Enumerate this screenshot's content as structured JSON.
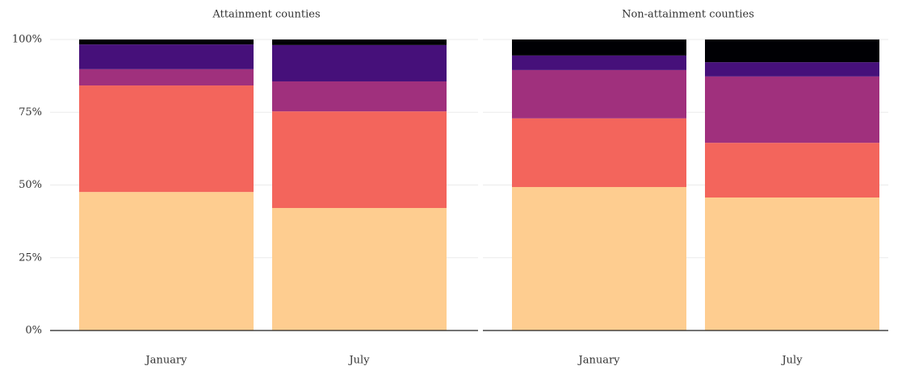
{
  "chart_data": [
    {
      "type": "bar",
      "stacked": true,
      "title": "Attainment counties",
      "categories": [
        "January",
        "July"
      ],
      "series": [
        {
          "color": "#fecd90",
          "values": [
            47.6,
            42.1
          ]
        },
        {
          "color": "#f3655c",
          "values": [
            36.6,
            33.2
          ]
        },
        {
          "color": "#a0307d",
          "values": [
            5.6,
            10.3
          ]
        },
        {
          "color": "#46107a",
          "values": [
            8.5,
            12.5
          ]
        },
        {
          "color": "#000004",
          "values": [
            1.7,
            1.9
          ]
        }
      ],
      "ylim": [
        0,
        100
      ],
      "yticks": [
        {
          "value": 0,
          "label": "0%"
        },
        {
          "value": 25,
          "label": "25%"
        },
        {
          "value": 50,
          "label": "50%"
        },
        {
          "value": 75,
          "label": "75%"
        },
        {
          "value": 100,
          "label": "100%"
        }
      ],
      "grid": true
    },
    {
      "type": "bar",
      "stacked": true,
      "title": "Non-attainment counties",
      "categories": [
        "January",
        "July"
      ],
      "series": [
        {
          "color": "#fecd90",
          "values": [
            49.3,
            45.7
          ]
        },
        {
          "color": "#f3655c",
          "values": [
            23.6,
            18.8
          ]
        },
        {
          "color": "#a0307d",
          "values": [
            16.6,
            22.8
          ]
        },
        {
          "color": "#46107a",
          "values": [
            5.0,
            4.9
          ]
        },
        {
          "color": "#000004",
          "values": [
            5.5,
            7.8
          ]
        }
      ],
      "ylim": [
        0,
        100
      ],
      "yticks": [
        0,
        25,
        50,
        75,
        100
      ],
      "grid": true
    }
  ]
}
